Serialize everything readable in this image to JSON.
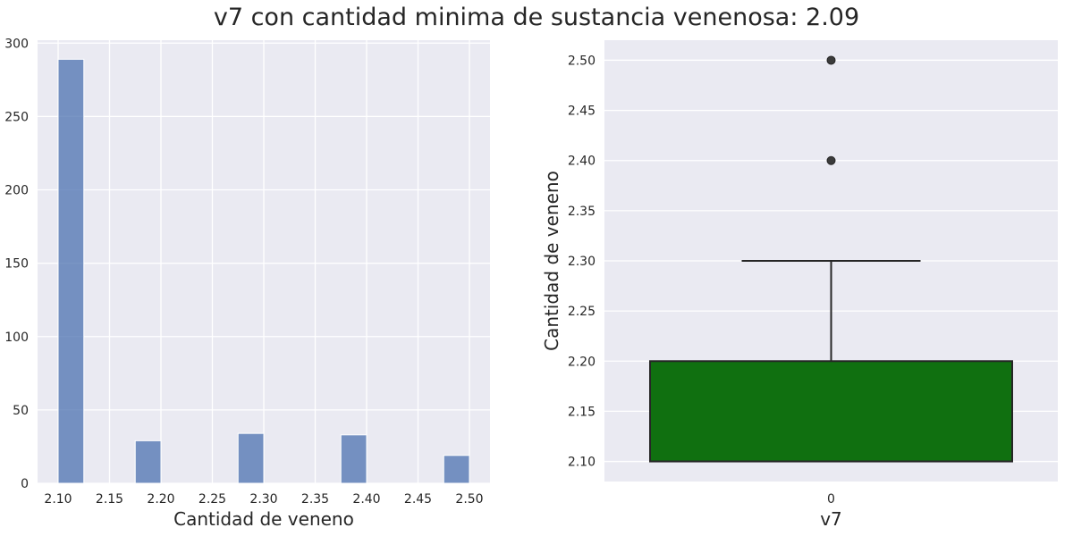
{
  "title": "v7 con cantidad minima de sustancia venenosa: 2.09",
  "colors": {
    "background": "#eaeaf2",
    "grid": "#ffffff",
    "hist_bar": "#4c72b0",
    "box_fill": "#107010",
    "box_line": "#262626"
  },
  "chart_data": [
    {
      "type": "bar",
      "subtype": "histogram",
      "xlabel": "Cantidad de veneno",
      "ylabel": "",
      "xlim": [
        2.08,
        2.52
      ],
      "ylim": [
        0,
        302
      ],
      "xticks": [
        "2.10",
        "2.15",
        "2.20",
        "2.25",
        "2.30",
        "2.35",
        "2.40",
        "2.45",
        "2.50"
      ],
      "yticks": [
        "0",
        "50",
        "100",
        "150",
        "200",
        "250",
        "300"
      ],
      "grid": true,
      "bars": [
        {
          "x0": 2.1,
          "x1": 2.125,
          "value": 289
        },
        {
          "x0": 2.125,
          "x1": 2.15,
          "value": 0
        },
        {
          "x0": 2.15,
          "x1": 2.175,
          "value": 0
        },
        {
          "x0": 2.175,
          "x1": 2.2,
          "value": 29
        },
        {
          "x0": 2.2,
          "x1": 2.225,
          "value": 0
        },
        {
          "x0": 2.225,
          "x1": 2.25,
          "value": 0
        },
        {
          "x0": 2.25,
          "x1": 2.275,
          "value": 0
        },
        {
          "x0": 2.275,
          "x1": 2.3,
          "value": 34
        },
        {
          "x0": 2.3,
          "x1": 2.325,
          "value": 0
        },
        {
          "x0": 2.325,
          "x1": 2.35,
          "value": 0
        },
        {
          "x0": 2.35,
          "x1": 2.375,
          "value": 0
        },
        {
          "x0": 2.375,
          "x1": 2.4,
          "value": 33
        },
        {
          "x0": 2.4,
          "x1": 2.425,
          "value": 0
        },
        {
          "x0": 2.425,
          "x1": 2.45,
          "value": 0
        },
        {
          "x0": 2.45,
          "x1": 2.475,
          "value": 0
        },
        {
          "x0": 2.475,
          "x1": 2.5,
          "value": 19
        }
      ]
    },
    {
      "type": "box",
      "xlabel": "v7",
      "ylabel": "Cantidad de veneno",
      "ylim": [
        2.08,
        2.52
      ],
      "categories": [
        "0"
      ],
      "yticks": [
        "2.10",
        "2.15",
        "2.20",
        "2.25",
        "2.30",
        "2.35",
        "2.40",
        "2.45",
        "2.50"
      ],
      "grid": true,
      "box": {
        "q1": 2.1,
        "median": 2.1,
        "q3": 2.2,
        "whisker_low": 2.1,
        "whisker_high": 2.3
      },
      "outliers": [
        2.4,
        2.5
      ]
    }
  ]
}
